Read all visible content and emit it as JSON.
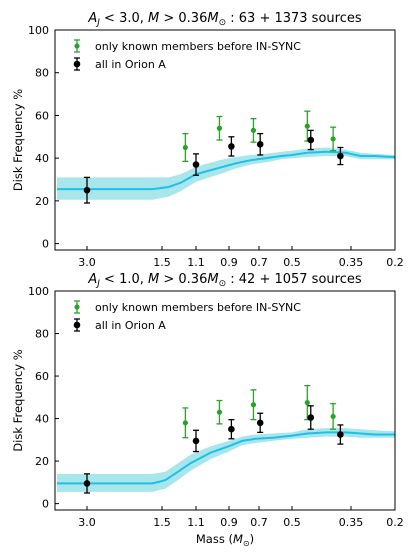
{
  "chart_data": [
    {
      "type": "scatter",
      "title": "A_J < 3.0, M > 0.36M_⊙ : 63 + 1373 sources",
      "title_parts": {
        "a": "A",
        "sub": "J",
        "b": " < 3.0, ",
        "m": "M",
        "c": " > 0.36",
        "m2": "M",
        "sun": "⊙",
        "d": " : 63 + 1373 sources"
      },
      "xlabel": "",
      "ylabel": "Disk Frequency %",
      "x_scale": "reciprocal (ticks evenly spaced in 1/M)",
      "x_ticks": [
        "3.0",
        "1.5",
        "1.1",
        "0.9",
        "0.7",
        "0.5",
        "0.35",
        "0.2"
      ],
      "xlim": [
        5.0,
        0.2
      ],
      "ylim": [
        -3,
        100
      ],
      "y_ticks": [
        "0",
        "20",
        "40",
        "60",
        "80",
        "100"
      ],
      "legend_position": "top-left",
      "series": [
        {
          "name": "only known members before IN-SYNC",
          "color": "#2ca02c",
          "points": [
            {
              "x": 1.2,
              "y": 45,
              "err": 6.5
            },
            {
              "x": 0.95,
              "y": 54,
              "err": 5.5
            },
            {
              "x": 0.73,
              "y": 53,
              "err": 5.5
            },
            {
              "x": 0.45,
              "y": 55,
              "err": 7
            },
            {
              "x": 0.385,
              "y": 49,
              "err": 5.5
            }
          ]
        },
        {
          "name": "all in Orion A",
          "color": "#000000",
          "points": [
            {
              "x": 3.0,
              "y": 25,
              "err": 6
            },
            {
              "x": 1.1,
              "y": 37,
              "err": 5
            },
            {
              "x": 0.88,
              "y": 45.5,
              "err": 4.5
            },
            {
              "x": 0.69,
              "y": 46.5,
              "err": 5
            },
            {
              "x": 0.44,
              "y": 48.5,
              "err": 4.5
            },
            {
              "x": 0.37,
              "y": 41,
              "err": 4
            }
          ]
        }
      ],
      "band": {
        "color": "#1ec0e8",
        "fill": "#a8e6ec",
        "x": [
          5.0,
          1.6,
          1.4,
          1.25,
          1.1,
          0.95,
          0.85,
          0.75,
          0.65,
          0.55,
          0.5,
          0.45,
          0.4,
          0.36,
          0.3,
          0.25,
          0.2
        ],
        "y": [
          25.5,
          25.5,
          26.5,
          28.5,
          32.5,
          35.5,
          37.5,
          39,
          40,
          41,
          41.5,
          42.5,
          43,
          42.5,
          41,
          41,
          40.5
        ],
        "lower": [
          20.5,
          20.5,
          22,
          24.5,
          29,
          32.5,
          35,
          37,
          38,
          39.5,
          40,
          40.5,
          41,
          41,
          39.5,
          39.5,
          39.5
        ],
        "upper": [
          31,
          31,
          31,
          32.5,
          36,
          39,
          40.5,
          41.5,
          42,
          43,
          43.5,
          44.5,
          45,
          44,
          42.5,
          42,
          41.5
        ]
      }
    },
    {
      "type": "scatter",
      "title": "A_J < 1.0, M > 0.36M_⊙ : 42 + 1057 sources",
      "title_parts": {
        "a": "A",
        "sub": "J",
        "b": " < 1.0, ",
        "m": "M",
        "c": " > 0.36",
        "m2": "M",
        "sun": "⊙",
        "d": " : 42 + 1057 sources"
      },
      "xlabel": "Mass (M_⊙)",
      "xlabel_parts": {
        "a": "Mass (",
        "m": "M",
        "sun": "⊙",
        "b": ")"
      },
      "ylabel": "Disk Frequency %",
      "x_scale": "reciprocal (ticks evenly spaced in 1/M)",
      "x_ticks": [
        "3.0",
        "1.5",
        "1.1",
        "0.9",
        "0.7",
        "0.5",
        "0.35",
        "0.2"
      ],
      "xlim": [
        5.0,
        0.2
      ],
      "ylim": [
        -3,
        100
      ],
      "y_ticks": [
        "0",
        "20",
        "40",
        "60",
        "80",
        "100"
      ],
      "legend_position": "top-left",
      "series": [
        {
          "name": "only known members before IN-SYNC",
          "color": "#2ca02c",
          "points": [
            {
              "x": 1.2,
              "y": 38,
              "err": 7
            },
            {
              "x": 0.95,
              "y": 43,
              "err": 5.5
            },
            {
              "x": 0.73,
              "y": 46.5,
              "err": 7
            },
            {
              "x": 0.45,
              "y": 47.5,
              "err": 8
            },
            {
              "x": 0.385,
              "y": 41,
              "err": 6
            }
          ]
        },
        {
          "name": "all in Orion A",
          "color": "#000000",
          "points": [
            {
              "x": 3.0,
              "y": 9.5,
              "err": 4.5
            },
            {
              "x": 1.1,
              "y": 29.5,
              "err": 5
            },
            {
              "x": 0.88,
              "y": 35,
              "err": 4.5
            },
            {
              "x": 0.69,
              "y": 38,
              "err": 4.5
            },
            {
              "x": 0.44,
              "y": 40.5,
              "err": 5.5
            },
            {
              "x": 0.37,
              "y": 32.5,
              "err": 4.5
            }
          ]
        }
      ],
      "band": {
        "color": "#1ec0e8",
        "fill": "#a8e6ec",
        "x": [
          5.0,
          1.6,
          1.45,
          1.3,
          1.15,
          1.0,
          0.9,
          0.8,
          0.72,
          0.6,
          0.5,
          0.45,
          0.4,
          0.36,
          0.3,
          0.25,
          0.2
        ],
        "y": [
          9.5,
          9.5,
          11,
          14.5,
          19,
          24,
          27,
          29.5,
          30.5,
          31,
          32,
          33,
          33.5,
          33.5,
          33,
          32.5,
          32.5
        ],
        "lower": [
          5.5,
          5.5,
          7,
          10.5,
          15.5,
          21,
          24.5,
          27.5,
          28.5,
          29.5,
          30.5,
          31,
          31.5,
          31.5,
          31,
          31,
          31
        ],
        "upper": [
          14,
          14,
          15,
          18.5,
          23,
          27,
          29.5,
          31.5,
          32.5,
          33,
          33.5,
          35,
          35.5,
          35.5,
          35,
          34.5,
          34
        ]
      }
    }
  ]
}
